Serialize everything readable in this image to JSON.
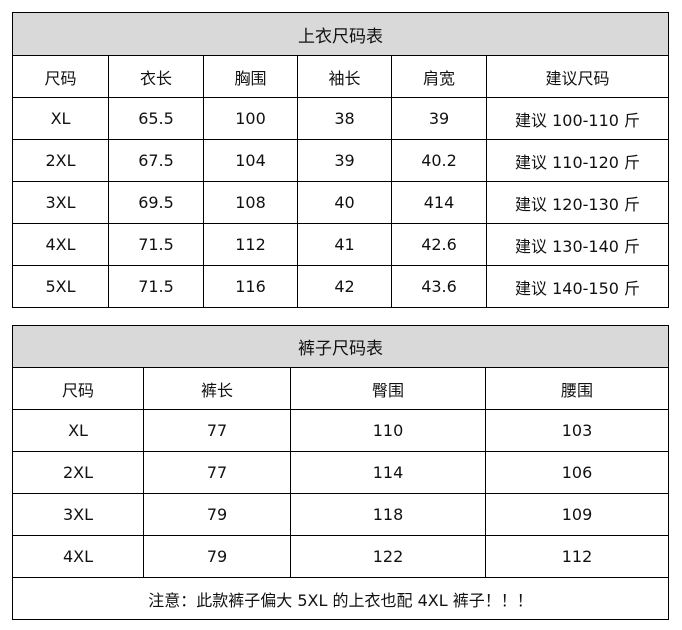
{
  "top_table": {
    "title": "上衣尺码表",
    "headers": [
      "尺码",
      "衣长",
      "胸围",
      "袖长",
      "肩宽",
      "建议尺码"
    ],
    "rows": [
      [
        "XL",
        "65.5",
        "100",
        "38",
        "39",
        "建议 100-110 斤"
      ],
      [
        "2XL",
        "67.5",
        "104",
        "39",
        "40.2",
        "建议 110-120 斤"
      ],
      [
        "3XL",
        "69.5",
        "108",
        "40",
        "414",
        "建议 120-130 斤"
      ],
      [
        "4XL",
        "71.5",
        "112",
        "41",
        "42.6",
        "建议 130-140 斤"
      ],
      [
        "5XL",
        "71.5",
        "116",
        "42",
        "43.6",
        "建议 140-150 斤"
      ]
    ]
  },
  "pants_table": {
    "title": "裤子尺码表",
    "headers": [
      "尺码",
      "裤长",
      "臀围",
      "腰围"
    ],
    "rows": [
      [
        "XL",
        "77",
        "110",
        "103"
      ],
      [
        "2XL",
        "77",
        "114",
        "106"
      ],
      [
        "3XL",
        "79",
        "118",
        "109"
      ],
      [
        "4XL",
        "79",
        "122",
        "112"
      ]
    ],
    "note": "注意：此款裤子偏大  5XL 的上衣也配 4XL 裤子！！！"
  }
}
